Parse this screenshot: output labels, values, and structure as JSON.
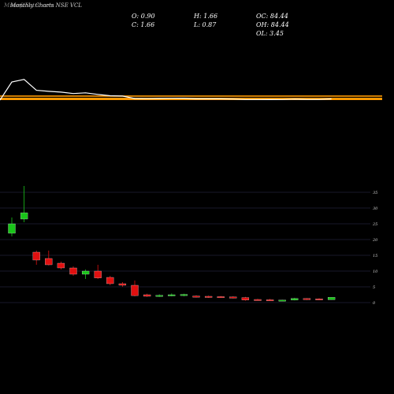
{
  "header": {
    "watermark": "MunafaSutra.com",
    "title": "Monthly Charts NSE VCL",
    "open": "O: 0.90",
    "close": "C: 1.66",
    "high": "H: 1.66",
    "low": "L: 0.87",
    "oc": "OC: 84.44",
    "oh": "OH: 84.44",
    "ol": "OL: 3.45"
  },
  "colors": {
    "up": "#19c419",
    "down": "#e01010",
    "ma": "#ff9900",
    "line": "#ffffff",
    "grid": "#2e2e55"
  },
  "chart_data": {
    "type": "candlestick",
    "ylim": [
      0,
      38
    ],
    "y_ticks": [
      0,
      5,
      10,
      15,
      20,
      25,
      30,
      35
    ],
    "ma_lines": [
      5.5,
      2.4,
      0.9
    ],
    "candles": [
      {
        "o": 22.0,
        "h": 27.0,
        "l": 21.0,
        "c": 25.0
      },
      {
        "o": 26.5,
        "h": 37.0,
        "l": 25.5,
        "c": 28.5
      },
      {
        "o": 16.0,
        "h": 16.5,
        "l": 12.0,
        "c": 13.5
      },
      {
        "o": 14.0,
        "h": 16.5,
        "l": 11.8,
        "c": 12.0
      },
      {
        "o": 12.5,
        "h": 13.0,
        "l": 10.5,
        "c": 11.0
      },
      {
        "o": 11.0,
        "h": 11.5,
        "l": 8.5,
        "c": 9.0
      },
      {
        "o": 9.0,
        "h": 10.5,
        "l": 7.5,
        "c": 10.0
      },
      {
        "o": 10.0,
        "h": 12.0,
        "l": 7.5,
        "c": 7.8
      },
      {
        "o": 8.0,
        "h": 8.5,
        "l": 5.5,
        "c": 6.0
      },
      {
        "o": 6.0,
        "h": 6.5,
        "l": 5.0,
        "c": 5.5
      },
      {
        "o": 5.5,
        "h": 7.0,
        "l": 2.0,
        "c": 2.2
      },
      {
        "o": 2.5,
        "h": 2.8,
        "l": 1.8,
        "c": 2.0
      },
      {
        "o": 2.0,
        "h": 2.6,
        "l": 1.8,
        "c": 2.3
      },
      {
        "o": 2.3,
        "h": 2.9,
        "l": 2.0,
        "c": 2.5
      },
      {
        "o": 2.4,
        "h": 2.8,
        "l": 2.0,
        "c": 2.6
      },
      {
        "o": 2.1,
        "h": 2.3,
        "l": 1.6,
        "c": 1.7
      },
      {
        "o": 2.0,
        "h": 2.2,
        "l": 1.5,
        "c": 1.7
      },
      {
        "o": 1.9,
        "h": 2.1,
        "l": 1.5,
        "c": 1.7
      },
      {
        "o": 1.8,
        "h": 2.0,
        "l": 1.3,
        "c": 1.4
      },
      {
        "o": 1.6,
        "h": 1.8,
        "l": 0.6,
        "c": 0.8
      },
      {
        "o": 1.0,
        "h": 1.2,
        "l": 0.6,
        "c": 0.8
      },
      {
        "o": 0.9,
        "h": 1.2,
        "l": 0.5,
        "c": 0.6
      },
      {
        "o": 0.6,
        "h": 0.9,
        "l": 0.5,
        "c": 0.8
      },
      {
        "o": 0.8,
        "h": 1.5,
        "l": 0.7,
        "c": 1.3
      },
      {
        "o": 1.3,
        "h": 1.4,
        "l": 0.8,
        "c": 0.9
      },
      {
        "o": 1.2,
        "h": 1.4,
        "l": 0.8,
        "c": 0.9
      },
      {
        "o": 0.9,
        "h": 1.66,
        "l": 0.87,
        "c": 1.66
      }
    ]
  }
}
